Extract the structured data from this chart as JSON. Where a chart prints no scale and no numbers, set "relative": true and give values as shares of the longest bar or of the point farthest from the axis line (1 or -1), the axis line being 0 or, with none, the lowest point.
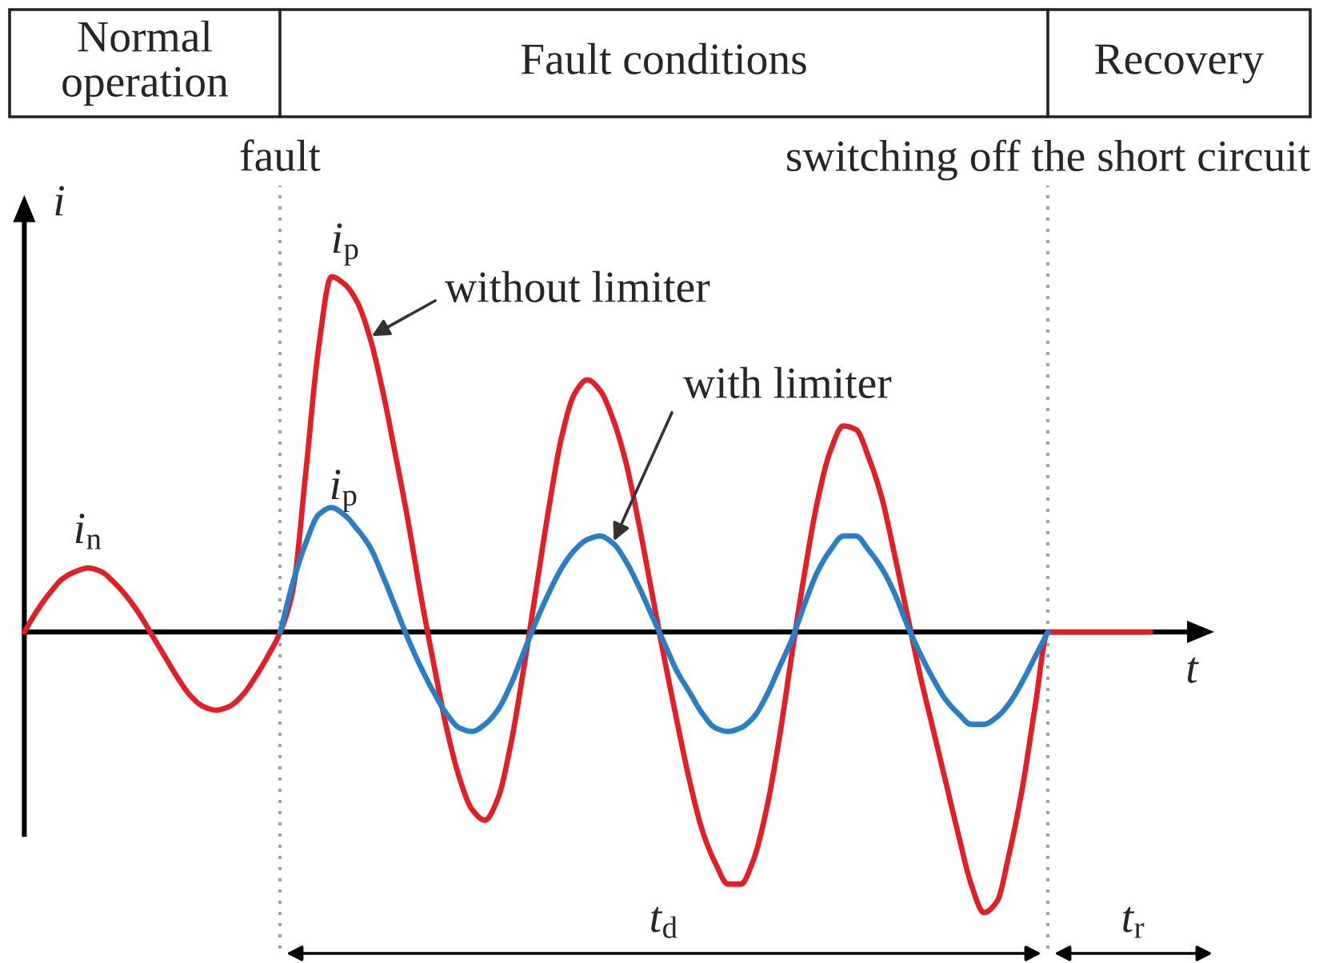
{
  "chart_data": {
    "type": "line",
    "relative": true,
    "categories": [
      null,
      null,
      null,
      null,
      null,
      null,
      null,
      null,
      null,
      null,
      null,
      null,
      null,
      null,
      null,
      null,
      null,
      null,
      null,
      null,
      null,
      null,
      null,
      null,
      null,
      null,
      null,
      null,
      null,
      null,
      null,
      null,
      null,
      null,
      null,
      null,
      null,
      null,
      null,
      null,
      null,
      null,
      null,
      null,
      null,
      null,
      null,
      null,
      null,
      null,
      null,
      null,
      null,
      null,
      null,
      null,
      null,
      null,
      null,
      null,
      null,
      null,
      null,
      null,
      null,
      null,
      null,
      null,
      null,
      null,
      null,
      null,
      null,
      null,
      null,
      null,
      null,
      null,
      null,
      null,
      null,
      null,
      null,
      null,
      null,
      null,
      null,
      null,
      null
    ],
    "series": [
      {
        "name": "without limiter",
        "color": "#e41e26",
        "values": [
          0,
          0.06,
          0.11,
          0.15,
          0.17,
          0.18,
          0.17,
          0.14,
          0.1,
          0.05,
          -0.01,
          -0.07,
          -0.13,
          -0.18,
          -0.21,
          -0.22,
          -0.21,
          -0.18,
          -0.13,
          -0.07,
          0,
          0.12,
          0.45,
          0.8,
          1,
          0.98,
          0.93,
          0.83,
          0.68,
          0.5,
          0.31,
          0.1,
          -0.09,
          -0.27,
          -0.41,
          -0.5,
          -0.53,
          -0.47,
          -0.32,
          -0.11,
          0.12,
          0.35,
          0.55,
          0.67,
          0.71,
          0.68,
          0.6,
          0.48,
          0.31,
          0.12,
          -0.07,
          -0.25,
          -0.42,
          -0.56,
          -0.65,
          -0.71,
          -0.71,
          -0.64,
          -0.5,
          -0.3,
          -0.06,
          0.17,
          0.37,
          0.51,
          0.58,
          0.57,
          0.49,
          0.38,
          0.22,
          0.05,
          -0.12,
          -0.27,
          -0.42,
          -0.57,
          -0.71,
          -0.79,
          -0.76,
          -0.62,
          -0.44,
          -0.21,
          0,
          0,
          0,
          0,
          0,
          0,
          0,
          0,
          0
        ]
      },
      {
        "name": "with limiter",
        "color": "#2a7fc4",
        "values": [
          null,
          null,
          null,
          null,
          null,
          null,
          null,
          null,
          null,
          null,
          null,
          null,
          null,
          null,
          null,
          null,
          null,
          null,
          null,
          null,
          0,
          0.14,
          0.25,
          0.33,
          0.35,
          0.33,
          0.29,
          0.24,
          0.16,
          0.07,
          -0.02,
          -0.1,
          -0.17,
          -0.23,
          -0.27,
          -0.28,
          -0.26,
          -0.22,
          -0.15,
          -0.06,
          0.03,
          0.11,
          0.18,
          0.23,
          0.26,
          0.27,
          0.25,
          0.2,
          0.13,
          0.05,
          -0.03,
          -0.11,
          -0.17,
          -0.23,
          -0.27,
          -0.28,
          -0.27,
          -0.24,
          -0.18,
          -0.1,
          -0.02,
          0.08,
          0.17,
          0.23,
          0.27,
          0.27,
          0.23,
          0.18,
          0.11,
          0.02,
          -0.06,
          -0.13,
          -0.19,
          -0.23,
          -0.26,
          -0.26,
          -0.24,
          -0.2,
          -0.14,
          -0.07,
          0,
          null,
          null,
          null,
          null,
          null,
          null,
          null,
          null
        ]
      }
    ],
    "xlabel": "t",
    "ylabel": "i",
    "annotations": [
      "Normal operation",
      "Fault conditions",
      "Recovery",
      "fault",
      "switching off the short circuit",
      "i$_{n}$",
      "i$_{p}$",
      "i$_{p}$",
      "t$_{d}$",
      "t$_{r}$"
    ]
  }
}
